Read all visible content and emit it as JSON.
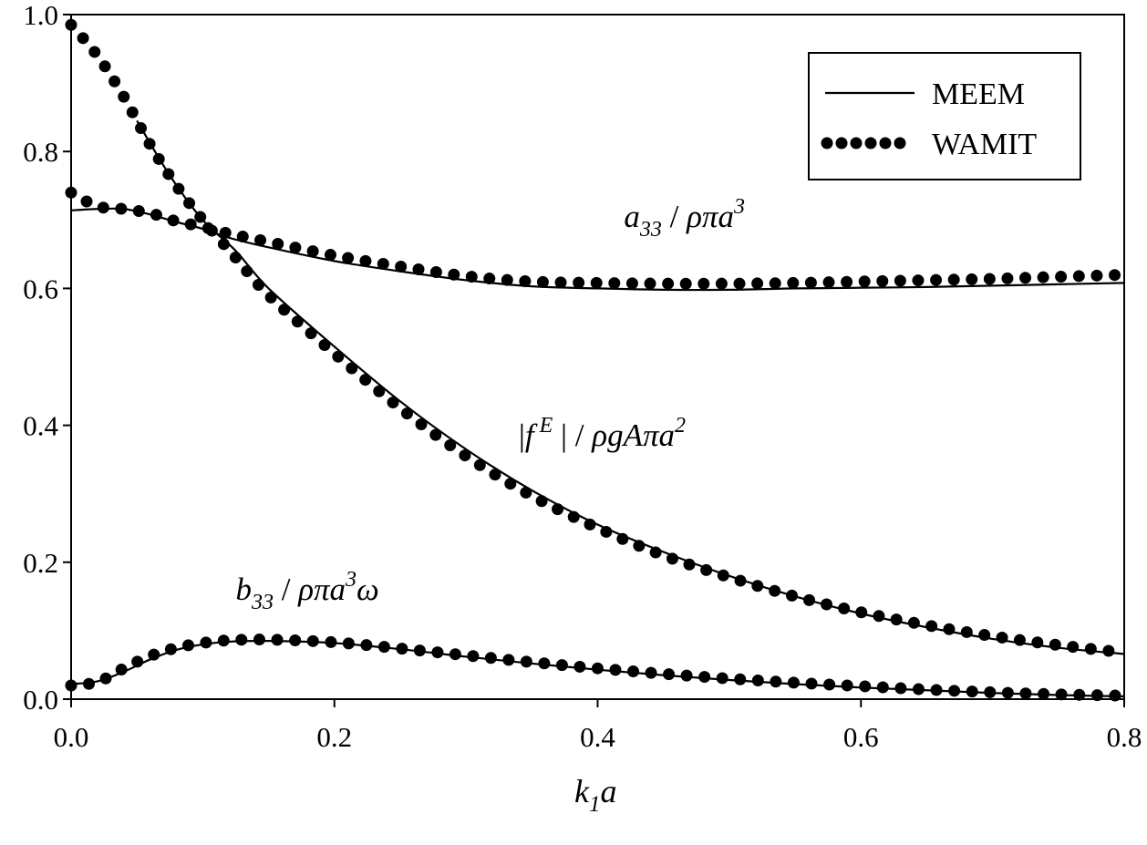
{
  "chart_data": {
    "type": "line",
    "title": "",
    "xlabel": {
      "base": "k",
      "sub": "1",
      "rest": "a"
    },
    "ylabel": "",
    "xlim": [
      0,
      0.8
    ],
    "ylim": [
      0,
      1.0
    ],
    "x_ticks": [
      "0.0",
      "0.2",
      "0.4",
      "0.6",
      "0.8"
    ],
    "y_ticks": [
      "0.0",
      "0.2",
      "0.4",
      "0.6",
      "0.8",
      "1.0"
    ],
    "grid": false,
    "legend_position": "top-right",
    "legend": [
      {
        "label": "MEEM",
        "style": "solid"
      },
      {
        "label": "WAMIT",
        "style": "dotted"
      }
    ],
    "series": [
      {
        "name": "MEEM",
        "curve": "a33",
        "style": "solid",
        "x": [
          0.0,
          0.02,
          0.04,
          0.06,
          0.08,
          0.1,
          0.12,
          0.15,
          0.2,
          0.25,
          0.3,
          0.35,
          0.4,
          0.45,
          0.5,
          0.55,
          0.6,
          0.65,
          0.7,
          0.75,
          0.8
        ],
        "y": [
          0.714,
          0.716,
          0.716,
          0.708,
          0.697,
          0.687,
          0.674,
          0.66,
          0.64,
          0.625,
          0.612,
          0.603,
          0.6,
          0.598,
          0.598,
          0.6,
          0.601,
          0.602,
          0.604,
          0.606,
          0.608
        ]
      },
      {
        "name": "WAMIT",
        "curve": "a33",
        "style": "dotted",
        "x": [
          0.0,
          0.02,
          0.04,
          0.06,
          0.08,
          0.1,
          0.12,
          0.15,
          0.2,
          0.25,
          0.3,
          0.35,
          0.4,
          0.45,
          0.5,
          0.55,
          0.6,
          0.65,
          0.7,
          0.75,
          0.8
        ],
        "y": [
          0.74,
          0.72,
          0.716,
          0.71,
          0.698,
          0.69,
          0.68,
          0.668,
          0.648,
          0.632,
          0.618,
          0.61,
          0.608,
          0.607,
          0.607,
          0.608,
          0.61,
          0.612,
          0.614,
          0.617,
          0.62
        ]
      },
      {
        "name": "MEEM",
        "curve": "fE",
        "style": "solid",
        "x": [
          0.05,
          0.075,
          0.1,
          0.125,
          0.15,
          0.2,
          0.25,
          0.3,
          0.35,
          0.4,
          0.45,
          0.5,
          0.55,
          0.6,
          0.65,
          0.7,
          0.75,
          0.8
        ],
        "y": [
          0.845,
          0.765,
          0.7,
          0.655,
          0.6,
          0.515,
          0.435,
          0.365,
          0.305,
          0.255,
          0.215,
          0.18,
          0.15,
          0.125,
          0.105,
          0.088,
          0.075,
          0.066
        ]
      },
      {
        "name": "WAMIT",
        "curve": "fE",
        "style": "dotted",
        "x": [
          0.0,
          0.02,
          0.04,
          0.06,
          0.08,
          0.1,
          0.125,
          0.15,
          0.2,
          0.25,
          0.3,
          0.35,
          0.4,
          0.45,
          0.5,
          0.55,
          0.6,
          0.65,
          0.7,
          0.75,
          0.8
        ],
        "y": [
          0.985,
          0.94,
          0.88,
          0.81,
          0.75,
          0.7,
          0.645,
          0.59,
          0.505,
          0.425,
          0.355,
          0.297,
          0.25,
          0.21,
          0.178,
          0.15,
          0.127,
          0.108,
          0.092,
          0.079,
          0.068
        ]
      },
      {
        "name": "MEEM",
        "curve": "b33",
        "style": "solid",
        "x": [
          0.0,
          0.02,
          0.04,
          0.06,
          0.08,
          0.1,
          0.12,
          0.15,
          0.2,
          0.25,
          0.3,
          0.35,
          0.4,
          0.45,
          0.5,
          0.55,
          0.6,
          0.65,
          0.7,
          0.75,
          0.8
        ],
        "y": [
          0.022,
          0.026,
          0.04,
          0.058,
          0.072,
          0.08,
          0.084,
          0.085,
          0.082,
          0.073,
          0.062,
          0.052,
          0.043,
          0.035,
          0.028,
          0.022,
          0.017,
          0.013,
          0.009,
          0.006,
          0.004
        ]
      },
      {
        "name": "WAMIT",
        "curve": "b33",
        "style": "dotted",
        "x": [
          0.0,
          0.02,
          0.04,
          0.06,
          0.08,
          0.1,
          0.12,
          0.15,
          0.2,
          0.25,
          0.3,
          0.35,
          0.4,
          0.45,
          0.5,
          0.55,
          0.6,
          0.65,
          0.7,
          0.75,
          0.8
        ],
        "y": [
          0.02,
          0.025,
          0.045,
          0.063,
          0.075,
          0.082,
          0.086,
          0.087,
          0.083,
          0.074,
          0.064,
          0.054,
          0.045,
          0.037,
          0.03,
          0.024,
          0.019,
          0.014,
          0.01,
          0.007,
          0.005
        ]
      }
    ],
    "annotations": [
      {
        "id": "a33",
        "at": [
          0.42,
          0.69
        ],
        "parts": [
          {
            "t": "a",
            "s": "i"
          },
          {
            "t": "33",
            "s": "sub"
          },
          {
            "t": " / ",
            "s": "n"
          },
          {
            "t": "ρπa",
            "s": "i"
          },
          {
            "t": "3",
            "s": "sup"
          }
        ]
      },
      {
        "id": "fE",
        "at": [
          0.34,
          0.37
        ],
        "parts": [
          {
            "t": "|",
            "s": "n"
          },
          {
            "t": "f",
            "s": "i"
          },
          {
            "t": " E",
            "s": "sup"
          },
          {
            "t": " | / ",
            "s": "n"
          },
          {
            "t": "ρgAπa",
            "s": "i"
          },
          {
            "t": "2",
            "s": "sup"
          }
        ]
      },
      {
        "id": "b33",
        "at": [
          0.125,
          0.145
        ],
        "parts": [
          {
            "t": "b",
            "s": "i"
          },
          {
            "t": "33",
            "s": "sub"
          },
          {
            "t": " / ",
            "s": "n"
          },
          {
            "t": "ρπa",
            "s": "i"
          },
          {
            "t": "3",
            "s": "sup"
          },
          {
            "t": "ω",
            "s": "i"
          }
        ]
      }
    ]
  }
}
